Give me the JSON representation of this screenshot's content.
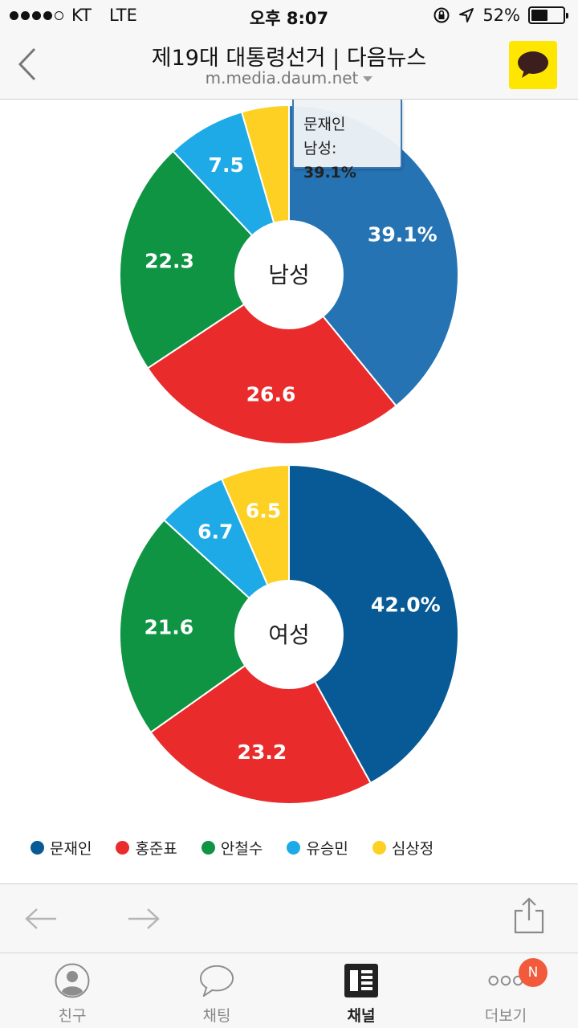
{
  "status_bar": {
    "carrier": "KT",
    "network": "LTE",
    "time": "오후 8:07",
    "battery": "52%",
    "battery_level": 0.52
  },
  "nav": {
    "title": "제19대 대통령선거 | 다음뉴스",
    "url": "m.media.daum.net",
    "back_icon": "chevron-left-icon",
    "share_icon": "kakaotalk-icon"
  },
  "chart_data": [
    {
      "type": "pie",
      "title": "남성",
      "categories": [
        "문재인",
        "홍준표",
        "안철수",
        "유승민",
        "심상정"
      ],
      "values": [
        39.1,
        26.6,
        22.3,
        7.5,
        4.5
      ],
      "labels": [
        "39.1%",
        "26.6",
        "22.3",
        "7.5",
        ""
      ],
      "colors": [
        "#2673b3",
        "#e92b2b",
        "#0e9443",
        "#1eaae6",
        "#fdd023"
      ]
    },
    {
      "type": "pie",
      "title": "여성",
      "categories": [
        "문재인",
        "홍준표",
        "안철수",
        "유승민",
        "심상정"
      ],
      "values": [
        42.0,
        23.2,
        21.6,
        6.7,
        6.5
      ],
      "labels": [
        "42.0%",
        "23.2",
        "21.6",
        "6.7",
        "6.5"
      ],
      "colors": [
        "#075a96",
        "#e92b2b",
        "#0e9443",
        "#1eaae6",
        "#fdd023"
      ]
    }
  ],
  "tooltip": {
    "name": "문재인",
    "label": "남성:",
    "value": "39.1%"
  },
  "legend": [
    {
      "name": "문재인",
      "color": "#075a96"
    },
    {
      "name": "홍준표",
      "color": "#e92b2b"
    },
    {
      "name": "안철수",
      "color": "#0e9443"
    },
    {
      "name": "유승민",
      "color": "#1eaae6"
    },
    {
      "name": "심상정",
      "color": "#fdd023"
    }
  ],
  "toolbar": {
    "back_icon": "arrow-left-icon",
    "forward_icon": "arrow-right-icon",
    "share_icon": "share-icon"
  },
  "tabs": [
    {
      "label": "친구",
      "icon": "person-icon"
    },
    {
      "label": "채팅",
      "icon": "chat-bubble-icon"
    },
    {
      "label": "채널",
      "icon": "channel-icon"
    },
    {
      "label": "더보기",
      "icon": "more-icon",
      "badge": "N"
    }
  ]
}
